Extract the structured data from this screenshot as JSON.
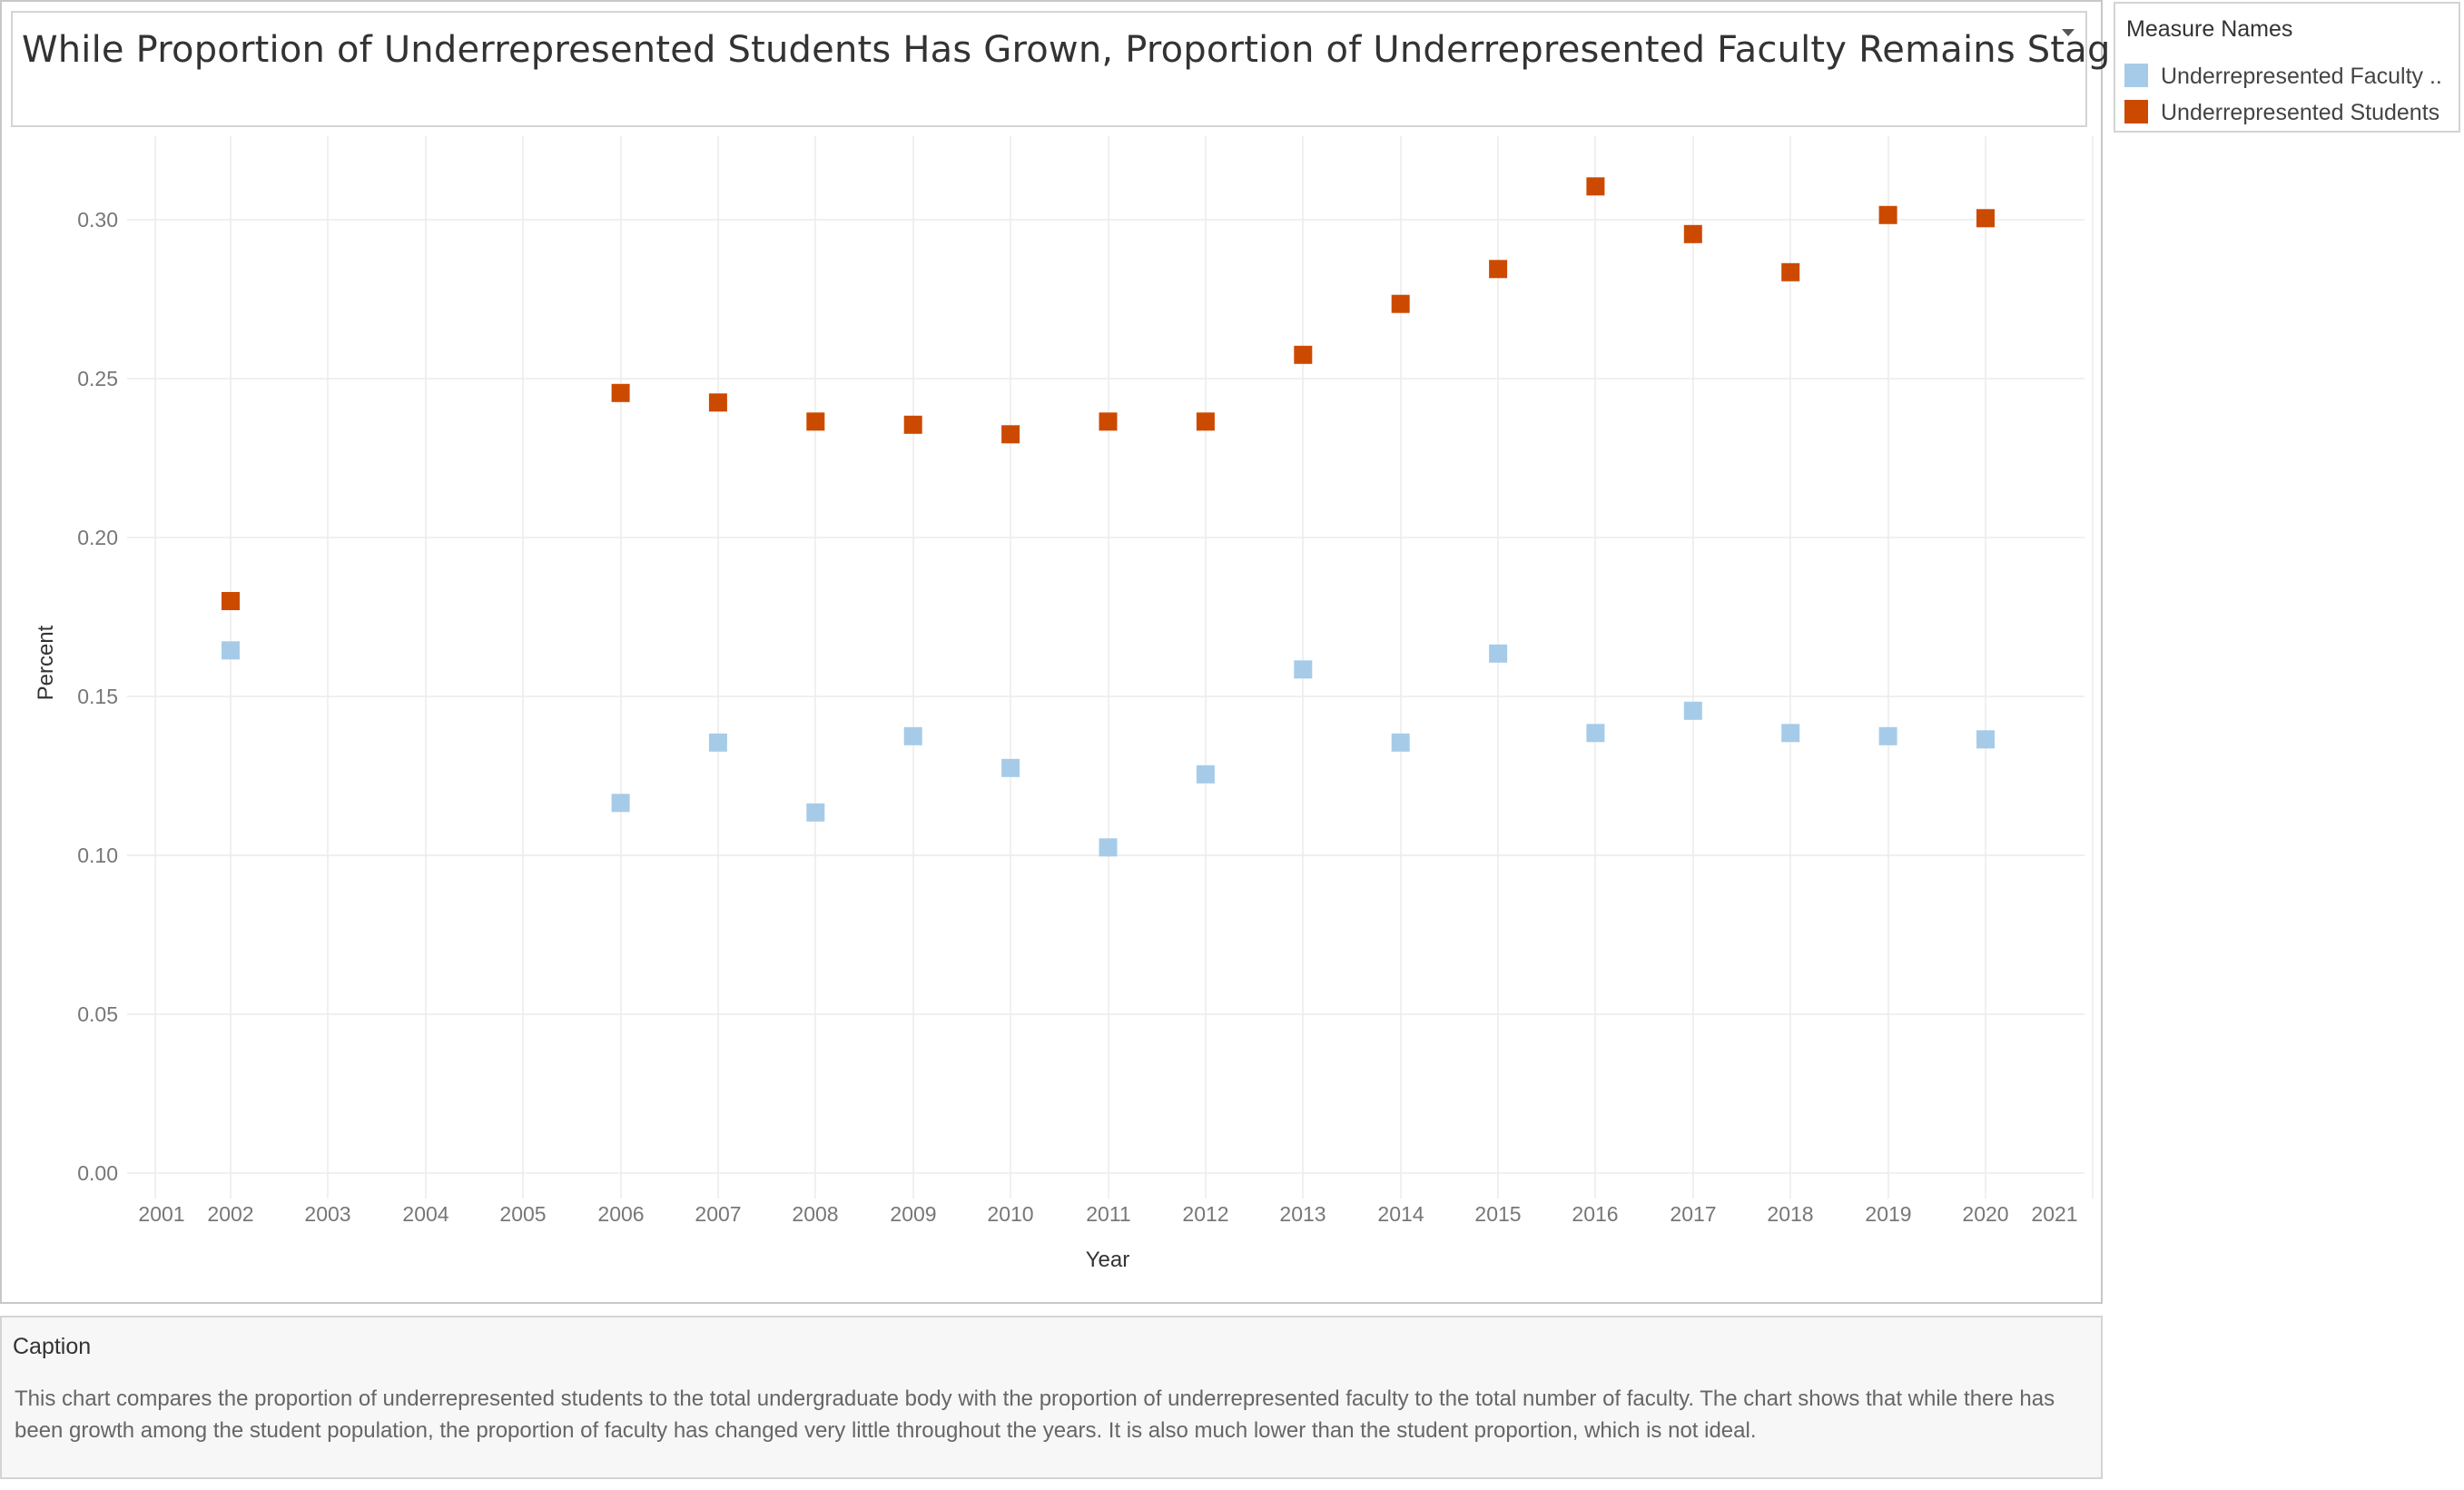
{
  "title": "While Proportion of Underrepresented Students Has Grown, Proportion of Underrepresented Faculty Remains Stagnant.",
  "legend": {
    "title": "Measure Names",
    "items": [
      {
        "label": "Underrepresented Faculty ..",
        "color": "#a6cbe8"
      },
      {
        "label": "Underrepresented Students",
        "color": "#cc4a00"
      }
    ]
  },
  "caption": {
    "title": "Caption",
    "text": "This chart compares the proportion of underrepresented students to the total undergraduate body with the proportion of underrepresented faculty to the total number of faculty. The chart shows that while there has been growth among the student population, the proportion of faculty has changed very little throughout the years. It is also much lower than the student proportion, which is not ideal."
  },
  "chart_data": {
    "type": "scatter",
    "title": "While Proportion of Underrepresented Students Has Grown, Proportion of Underrepresented Faculty Remains Stagnant.",
    "xlabel": "Year",
    "ylabel": "Percent",
    "xlim": [
      2001,
      2021
    ],
    "ylim": [
      0,
      0.3
    ],
    "x_ticks": [
      2001,
      2002,
      2003,
      2004,
      2005,
      2006,
      2007,
      2008,
      2009,
      2010,
      2011,
      2012,
      2013,
      2014,
      2015,
      2016,
      2017,
      2018,
      2019,
      2020,
      2021
    ],
    "y_ticks": [
      "0.00",
      "0.05",
      "0.10",
      "0.15",
      "0.20",
      "0.25",
      "0.30"
    ],
    "grid": true,
    "legend_position": "top-right",
    "series": [
      {
        "name": "Underrepresented Faculty ..",
        "color": "#a6cbe8",
        "x": [
          2002,
          2006,
          2007,
          2008,
          2009,
          2010,
          2011,
          2012,
          2013,
          2014,
          2015,
          2016,
          2017,
          2018,
          2019,
          2020
        ],
        "y": [
          0.1645,
          0.1165,
          0.1355,
          0.1135,
          0.1375,
          0.1275,
          0.1025,
          0.1255,
          0.1585,
          0.1355,
          0.1635,
          0.1385,
          0.1455,
          0.1385,
          0.1375,
          0.1365
        ]
      },
      {
        "name": "Underrepresented Students",
        "color": "#cc4a00",
        "x": [
          2002,
          2006,
          2007,
          2008,
          2009,
          2010,
          2011,
          2012,
          2013,
          2014,
          2015,
          2016,
          2017,
          2018,
          2019,
          2020
        ],
        "y": [
          0.18,
          0.2455,
          0.2425,
          0.2365,
          0.2355,
          0.2325,
          0.2365,
          0.2365,
          0.2575,
          0.2735,
          0.2845,
          0.3105,
          0.2955,
          0.2835,
          0.3015,
          0.3005
        ]
      }
    ]
  }
}
